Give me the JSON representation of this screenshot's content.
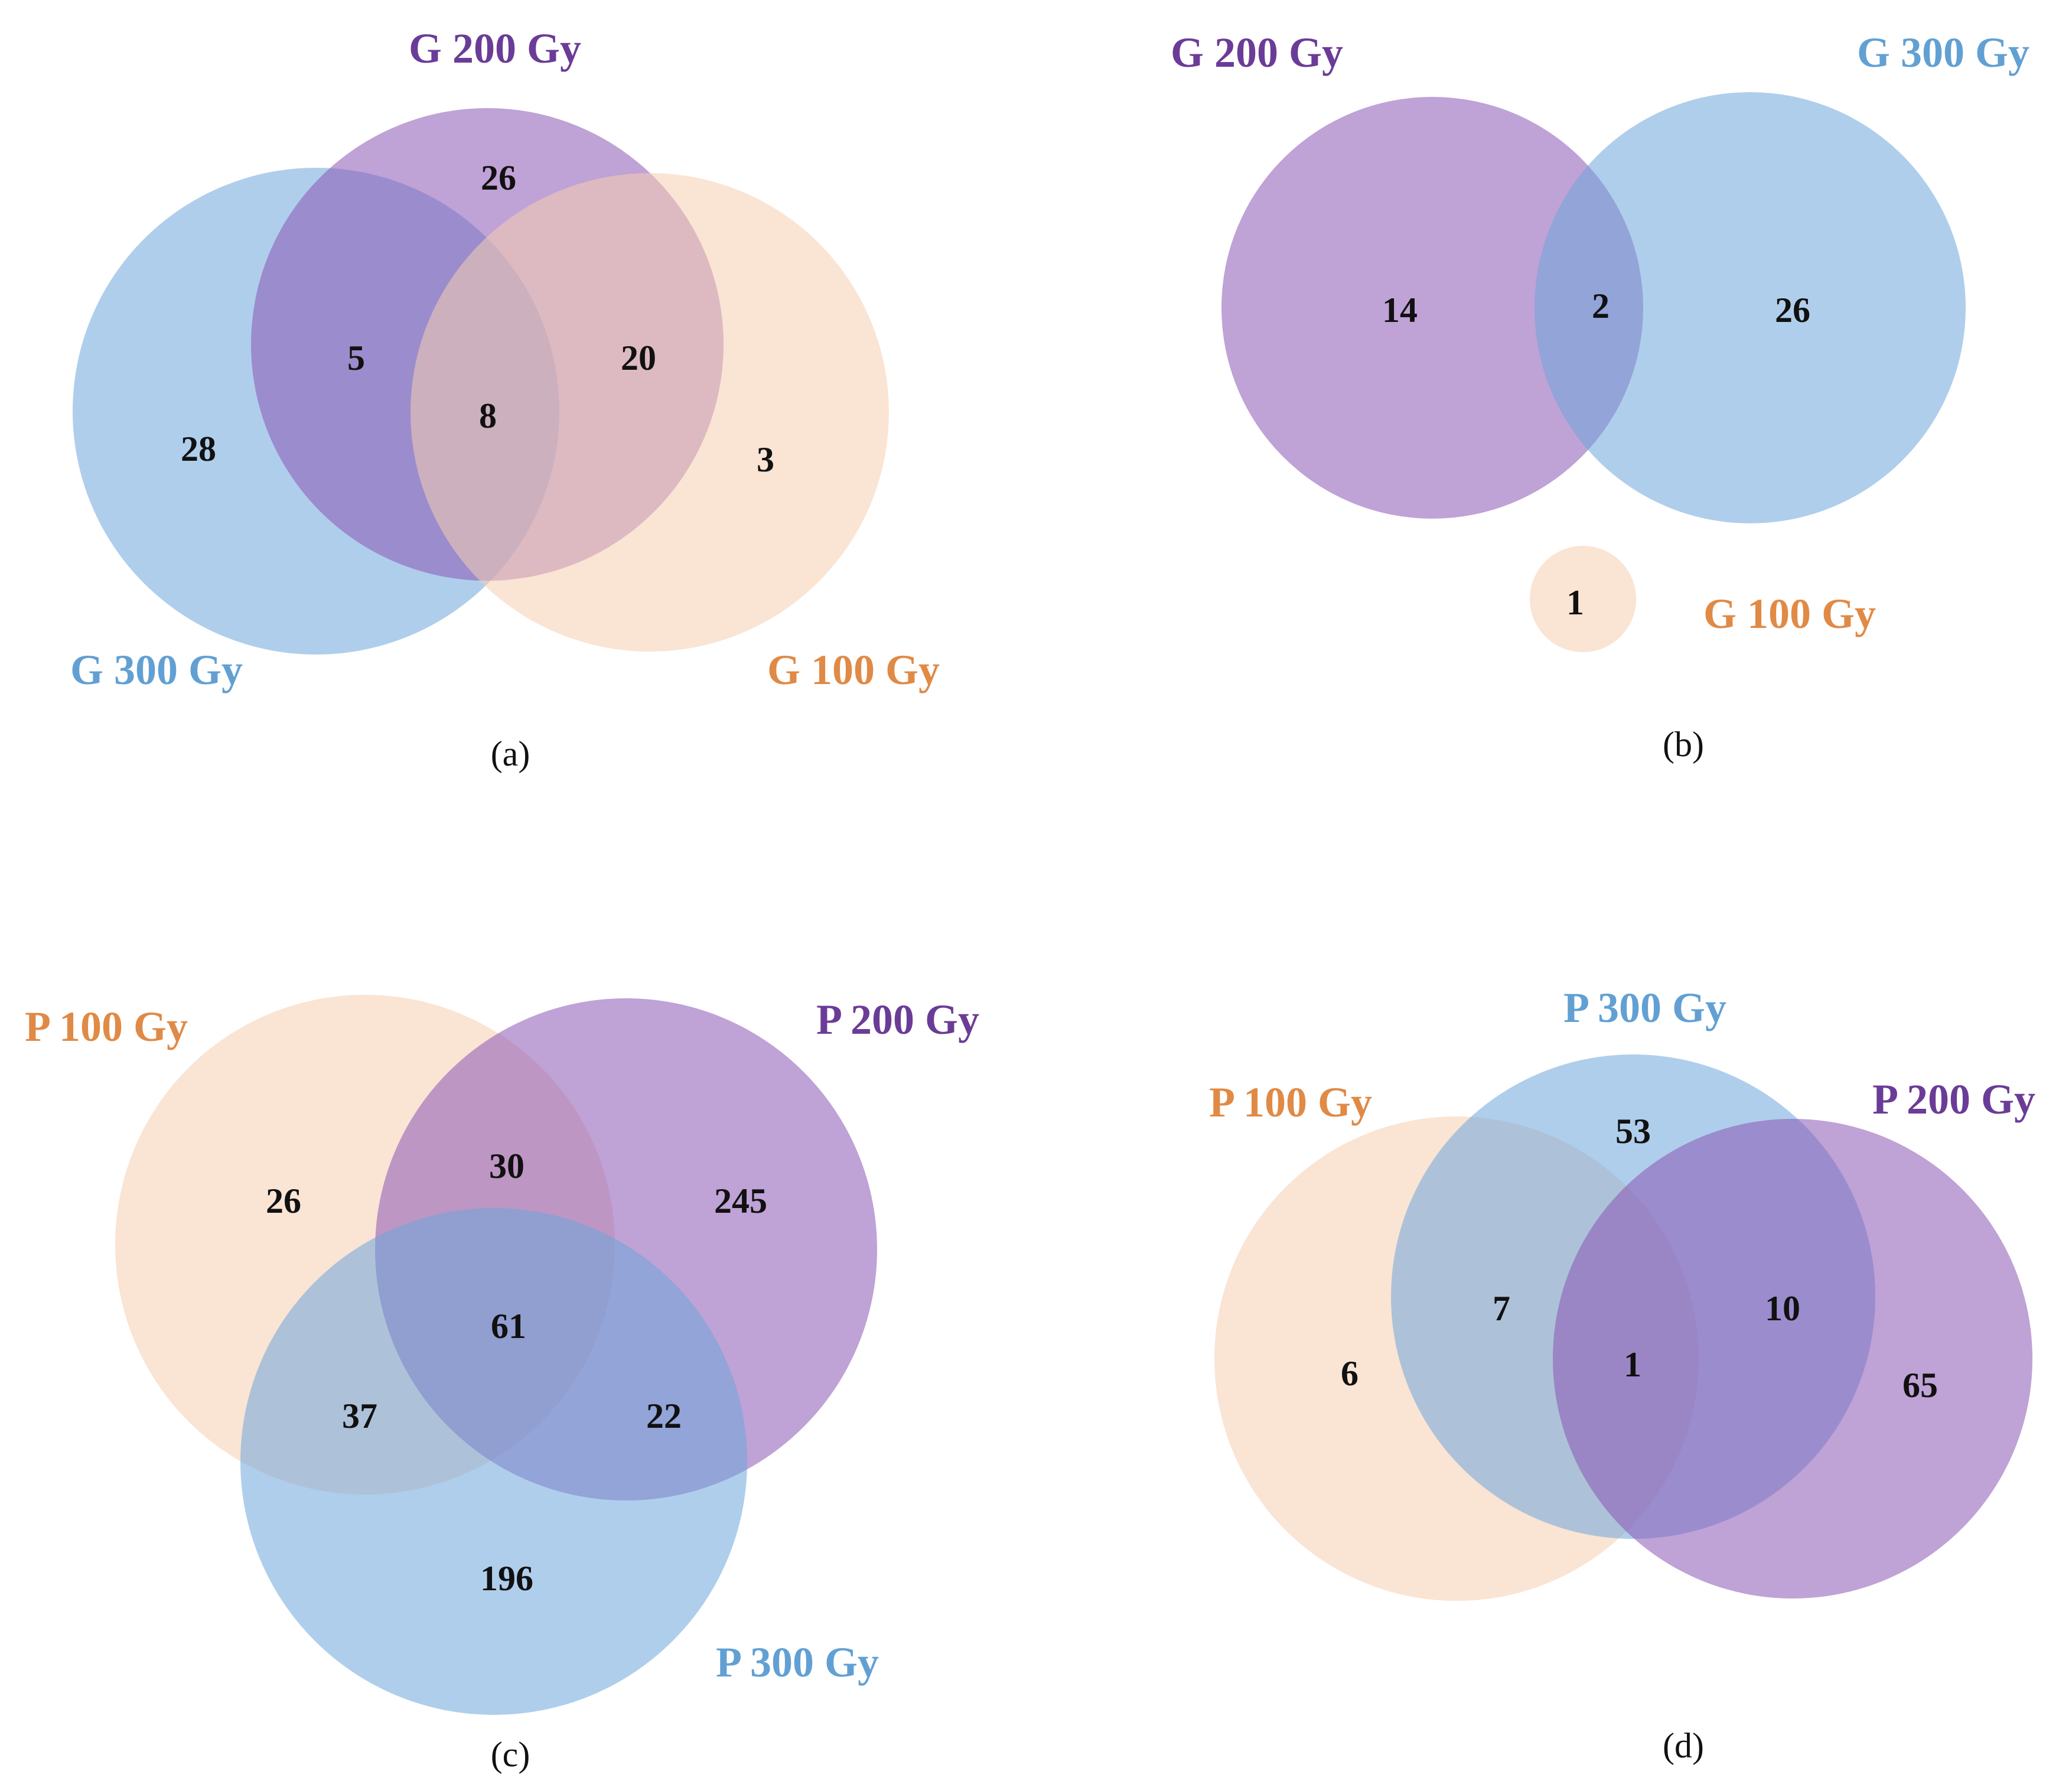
{
  "colors": {
    "orange_fill": "#f6cdb0",
    "purple_fill": "#8b55b4",
    "blue_fill": "#6ea6da",
    "orange_text": "#e08a46",
    "purple_text": "#6b3c97",
    "blue_text": "#62a0d3"
  },
  "panels": {
    "a": {
      "label": "(a)",
      "sets": {
        "g200": "G 200 Gy",
        "g300": "G 300 Gy",
        "g100": "G 100 Gy"
      },
      "regions": {
        "g200_only": "26",
        "g200_g300": "5",
        "all_three": "8",
        "g200_g100": "20",
        "g300_only": "28",
        "g100_only": "3"
      }
    },
    "b": {
      "label": "(b)",
      "sets": {
        "g200": "G 200 Gy",
        "g300": "G 300 Gy",
        "g100": "G 100 Gy"
      },
      "regions": {
        "g200_only": "14",
        "g200_g300": "2",
        "g300_only": "26",
        "g100_only": "1"
      }
    },
    "c": {
      "label": "(c)",
      "sets": {
        "p100": "P 100 Gy",
        "p200": "P 200 Gy",
        "p300": "P 300 Gy"
      },
      "regions": {
        "p100_only": "26",
        "p100_p200": "30",
        "p200_only": "245",
        "all_three": "61",
        "p100_p300": "37",
        "p200_p300": "22",
        "p300_only": "196"
      }
    },
    "d": {
      "label": "(d)",
      "sets": {
        "p300": "P 300 Gy",
        "p100": "P 100 Gy",
        "p200": "P 200 Gy"
      },
      "regions": {
        "p300_only": "53",
        "p100_p300": "7",
        "p200_p300": "10",
        "all_three": "1",
        "p100_only": "6",
        "p200_only": "65"
      }
    }
  }
}
